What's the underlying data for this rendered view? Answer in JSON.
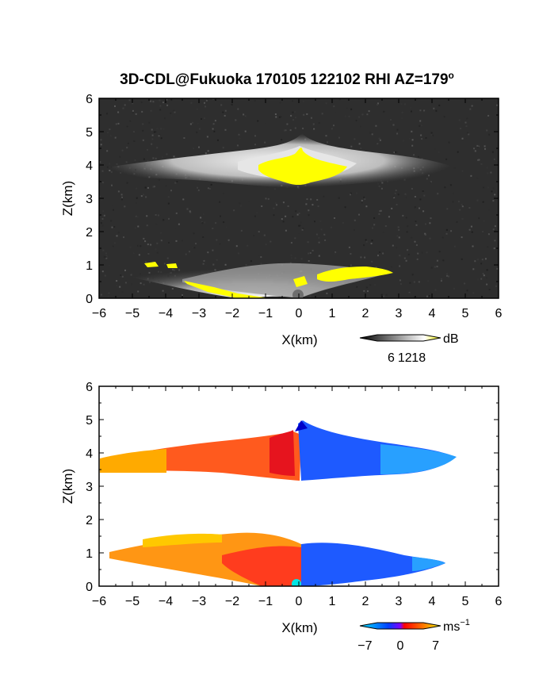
{
  "title": "3D-CDL@Fukuoka 170105 122102 RHI AZ=179",
  "title_superscript": "o",
  "chart_data": [
    {
      "type": "heatmap",
      "quantity": "backscatter intensity",
      "xlabel": "X(km)",
      "ylabel": "Z(km)",
      "xlim": [
        -6,
        6
      ],
      "ylim": [
        0,
        6
      ],
      "xticks": [
        "−6",
        "−5",
        "−4",
        "−3",
        "−2",
        "−1",
        "0",
        "1",
        "2",
        "3",
        "4",
        "5",
        "6"
      ],
      "yticks": [
        "0",
        "1",
        "2",
        "3",
        "4",
        "5",
        "6"
      ],
      "background_color": "#2e2e2e",
      "colorbar": {
        "unit": "dB",
        "ticks": [
          "6",
          "12",
          "18"
        ],
        "range": [
          0,
          20
        ],
        "colors": [
          "#000000",
          "#ffffff",
          "#ffff00"
        ]
      },
      "layers": [
        {
          "name": "upper cloud layer",
          "x_range": [
            -6,
            4.6
          ],
          "z_range": [
            3.4,
            4.8
          ],
          "peak": "yellow core x -1.2 to 1.4"
        },
        {
          "name": "lower cloud layer",
          "x_range": [
            -6,
            3.0
          ],
          "z_range": [
            0,
            1.2
          ],
          "peak": "yellow patches near surface"
        }
      ]
    },
    {
      "type": "heatmap",
      "quantity": "Doppler velocity",
      "xlabel": "X(km)",
      "ylabel": "Z(km)",
      "xlim": [
        -6,
        6
      ],
      "ylim": [
        0,
        6
      ],
      "xticks": [
        "−6",
        "−5",
        "−4",
        "−3",
        "−2",
        "−1",
        "0",
        "1",
        "2",
        "3",
        "4",
        "5",
        "6"
      ],
      "yticks": [
        "0",
        "1",
        "2",
        "3",
        "4",
        "5",
        "6"
      ],
      "colorbar": {
        "unit": "ms",
        "unit_superscript": "−1",
        "ticks": [
          "−7",
          "0",
          "7"
        ],
        "range": [
          -8,
          8
        ],
        "colors": [
          "#00ffff",
          "#0000ff",
          "#ff0000",
          "#ffff00"
        ]
      },
      "layers": [
        {
          "name": "upper cloud layer",
          "x_range": [
            -6,
            4.7
          ],
          "z_range": [
            3.3,
            4.9
          ],
          "sign_change_x": 0
        },
        {
          "name": "lower cloud layer",
          "x_range": [
            -5.9,
            4.4
          ],
          "z_range": [
            0,
            1.5
          ],
          "sign_change_x": 0
        }
      ]
    }
  ]
}
